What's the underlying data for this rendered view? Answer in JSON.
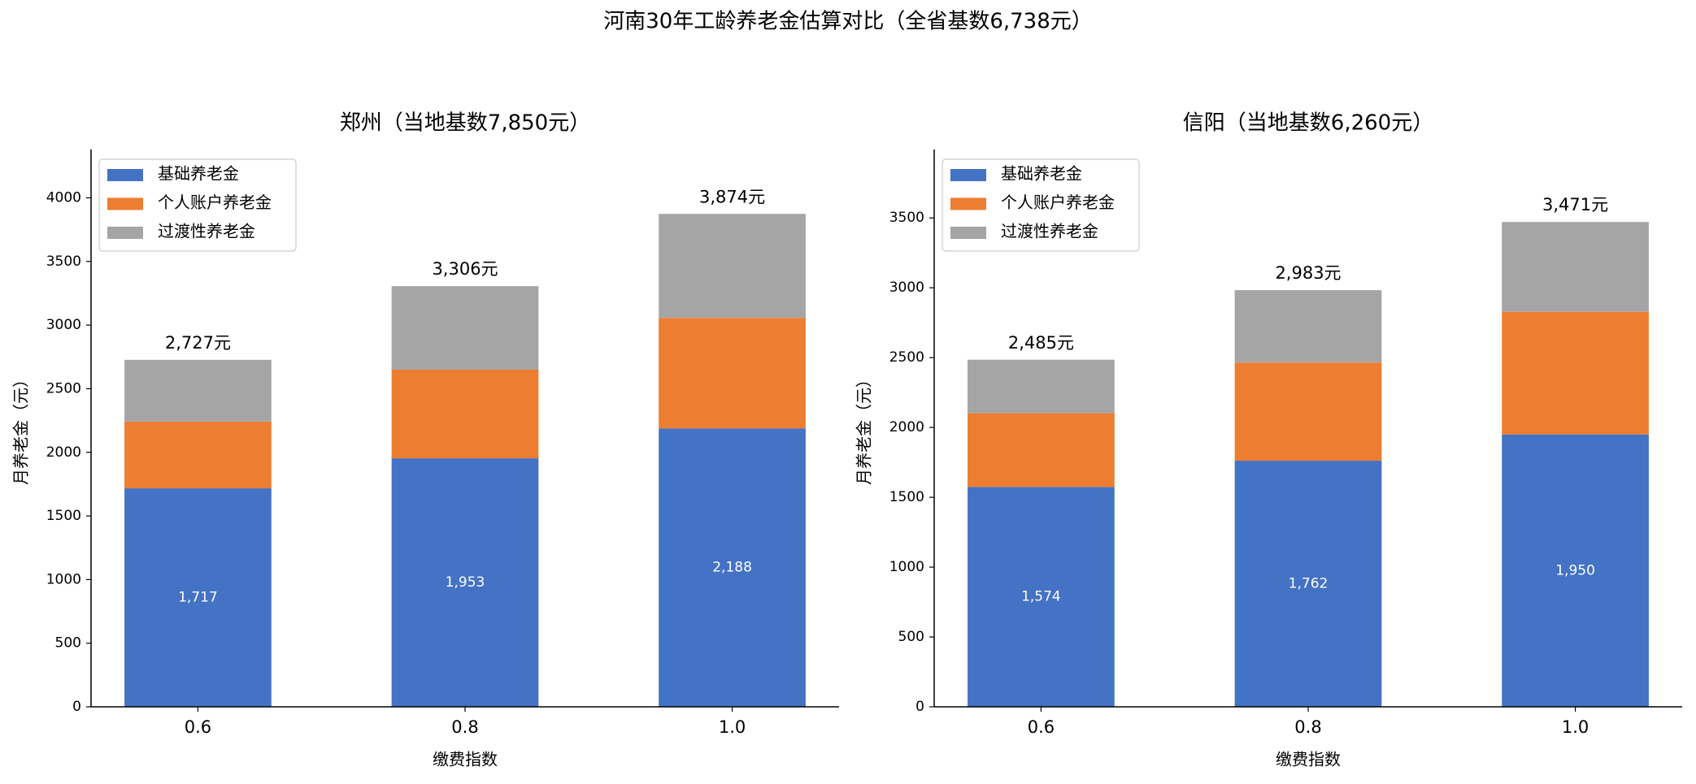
{
  "title": "河南30年工龄养老金估算对比（全省基数6,738元）",
  "chart_data": [
    {
      "type": "bar",
      "stacked": true,
      "title": "郑州（当地基数7,850元）",
      "xlabel": "缴费指数",
      "ylabel": "月养老金（元）",
      "categories": [
        "0.6",
        "0.8",
        "1.0"
      ],
      "series": [
        {
          "name": "基础养老金",
          "color": "#4472c4",
          "values": [
            1717,
            1953,
            2188
          ],
          "value_labels": [
            "1,717",
            "1,953",
            "2,188"
          ]
        },
        {
          "name": "个人账户养老金",
          "color": "#ed7d31",
          "values": [
            525,
            697,
            869
          ]
        },
        {
          "name": "过渡性养老金",
          "color": "#a5a5a5",
          "values": [
            485,
            656,
            817
          ]
        }
      ],
      "totals": [
        2727,
        3306,
        3874
      ],
      "total_labels": [
        "2,727元",
        "3,306元",
        "3,874元"
      ],
      "ylim": [
        0,
        4380
      ],
      "yticks": [
        0,
        500,
        1000,
        1500,
        2000,
        2500,
        3000,
        3500,
        4000
      ],
      "grid": false,
      "legend": "upper left"
    },
    {
      "type": "bar",
      "stacked": true,
      "title": "信阳（当地基数6,260元）",
      "xlabel": "缴费指数",
      "ylabel": "月养老金（元）",
      "categories": [
        "0.6",
        "0.8",
        "1.0"
      ],
      "series": [
        {
          "name": "基础养老金",
          "color": "#4472c4",
          "values": [
            1574,
            1762,
            1950
          ],
          "value_labels": [
            "1,574",
            "1,762",
            "1,950"
          ]
        },
        {
          "name": "个人账户养老金",
          "color": "#ed7d31",
          "values": [
            528,
            703,
            878
          ]
        },
        {
          "name": "过渡性养老金",
          "color": "#a5a5a5",
          "values": [
            383,
            518,
            643
          ]
        }
      ],
      "totals": [
        2485,
        2983,
        3471
      ],
      "total_labels": [
        "2,485元",
        "2,983元",
        "3,471元"
      ],
      "ylim": [
        0,
        3990
      ],
      "yticks": [
        0,
        500,
        1000,
        1500,
        2000,
        2500,
        3000,
        3500
      ],
      "grid": false,
      "legend": "upper left"
    }
  ]
}
